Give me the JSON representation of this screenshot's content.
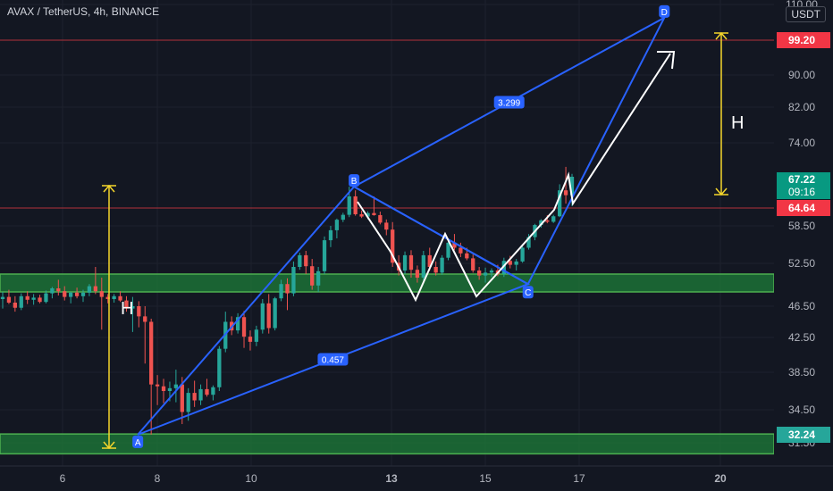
{
  "header": {
    "title": "AVAX / TetherUS, 4h, BINANCE",
    "currency": "USDT"
  },
  "chart_data": {
    "type": "candlestick",
    "y_ticks": [
      "110.00",
      "99.20",
      "90.00",
      "82.00",
      "74.00",
      "67.22",
      "58.50",
      "52.50",
      "46.50",
      "42.50",
      "38.50",
      "34.50",
      "31.50"
    ],
    "x_ticks": [
      "6",
      "8",
      "10",
      "13",
      "15",
      "17",
      "20"
    ],
    "price_labels": [
      {
        "text": "99.20",
        "value": 99.2,
        "color": "#f23645"
      },
      {
        "text": "67.22",
        "sub": "09:16",
        "value": 67.22,
        "color": "#089981"
      },
      {
        "text": "64.64",
        "value": 64.64,
        "color": "#f23645"
      },
      {
        "text": "32.24",
        "value": 32.24,
        "color": "#26a69a"
      }
    ],
    "horizontal_lines": [
      {
        "value": 99.2,
        "color": "#b2323a"
      },
      {
        "value": 64.64,
        "color": "#b2323a"
      }
    ],
    "zones": [
      {
        "from": 48.5,
        "to": 51.0,
        "color": "#1e7d3a"
      },
      {
        "from": 30.5,
        "to": 32.3,
        "color": "#1e7d3a"
      }
    ],
    "pattern_points": [
      {
        "label": "A",
        "x": "7.6",
        "y": 32.24
      },
      {
        "label": "B",
        "x": "12.2",
        "y": 66.4
      },
      {
        "label": "C",
        "x": "15.9",
        "y": 49.6
      },
      {
        "label": "D",
        "x": "18.8",
        "y": 106
      }
    ],
    "ratio_labels": [
      {
        "text": "0.457"
      },
      {
        "text": "3.299"
      }
    ],
    "measure_labels": [
      {
        "text": "H"
      },
      {
        "text": "H"
      }
    ],
    "colors": {
      "up": "#26a69a",
      "down": "#ef5350",
      "pattern": "#2962ff",
      "measure": "#f5d62b",
      "projection": "#ffffff"
    },
    "candles": [
      [
        47.5,
        48.5,
        46.2,
        47.8
      ],
      [
        47.8,
        48.8,
        46.8,
        47.0
      ],
      [
        47.0,
        47.9,
        45.8,
        46.3
      ],
      [
        46.3,
        48.3,
        46.0,
        47.9
      ],
      [
        47.9,
        48.6,
        46.8,
        47.4
      ],
      [
        47.4,
        48.2,
        46.7,
        47.7
      ],
      [
        47.7,
        48.1,
        46.9,
        47.1
      ],
      [
        47.1,
        48.7,
        46.9,
        48.3
      ],
      [
        48.3,
        49.2,
        47.6,
        49.0
      ],
      [
        49.0,
        50.2,
        48.0,
        48.6
      ],
      [
        48.6,
        49.3,
        47.3,
        47.8
      ],
      [
        47.8,
        48.5,
        46.9,
        48.4
      ],
      [
        48.4,
        49.1,
        47.6,
        47.9
      ],
      [
        47.9,
        48.8,
        47.1,
        48.4
      ],
      [
        48.4,
        49.6,
        47.9,
        49.3
      ],
      [
        49.3,
        52.0,
        48.2,
        48.6
      ],
      [
        48.6,
        50.5,
        43.5,
        47.8
      ],
      [
        47.8,
        48.2,
        46.9,
        47.5
      ],
      [
        47.5,
        48.2,
        47.0,
        47.9
      ],
      [
        47.9,
        48.6,
        47.1,
        47.3
      ],
      [
        47.3,
        47.9,
        45.8,
        46.2
      ],
      [
        46.2,
        47.8,
        43.2,
        46.5
      ],
      [
        46.5,
        47.2,
        43.8,
        45.2
      ],
      [
        45.2,
        46.5,
        39.5,
        44.5
      ],
      [
        44.5,
        44.9,
        32.24,
        37.2
      ],
      [
        37.2,
        38.2,
        35.0,
        37.0
      ],
      [
        37.0,
        37.8,
        35.2,
        36.5
      ],
      [
        36.5,
        37.5,
        35.4,
        36.8
      ],
      [
        36.8,
        38.8,
        35.3,
        37.2
      ],
      [
        37.2,
        38.0,
        33.2,
        34.3
      ],
      [
        34.3,
        36.8,
        33.5,
        36.3
      ],
      [
        36.3,
        37.6,
        34.8,
        35.5
      ],
      [
        35.5,
        37.2,
        35.0,
        36.7
      ],
      [
        36.7,
        37.8,
        35.9,
        36.1
      ],
      [
        36.1,
        37.1,
        35.5,
        36.9
      ],
      [
        36.9,
        41.5,
        36.5,
        41.2
      ],
      [
        41.2,
        45.8,
        40.8,
        44.5
      ],
      [
        44.5,
        45.2,
        42.8,
        43.4
      ],
      [
        43.4,
        45.6,
        43.0,
        45.1
      ],
      [
        45.1,
        45.9,
        41.3,
        42.6
      ],
      [
        42.6,
        43.4,
        41.0,
        42.0
      ],
      [
        42.0,
        44.0,
        41.5,
        43.5
      ],
      [
        43.5,
        47.5,
        43.0,
        46.9
      ],
      [
        46.9,
        48.2,
        43.0,
        43.7
      ],
      [
        43.7,
        47.8,
        43.4,
        47.6
      ],
      [
        47.6,
        50.2,
        47.2,
        49.6
      ],
      [
        49.6,
        50.4,
        46.0,
        48.3
      ],
      [
        48.3,
        52.8,
        47.9,
        52.0
      ],
      [
        52.0,
        54.2,
        51.6,
        53.8
      ],
      [
        53.8,
        54.5,
        51.0,
        52.1
      ],
      [
        52.1,
        53.2,
        48.8,
        49.4
      ],
      [
        49.4,
        52.0,
        48.5,
        51.4
      ],
      [
        51.4,
        56.8,
        51.0,
        56.2
      ],
      [
        56.2,
        58.5,
        55.1,
        57.8
      ],
      [
        57.8,
        61.0,
        56.5,
        60.6
      ],
      [
        60.6,
        63.0,
        59.8,
        62.3
      ],
      [
        62.3,
        66.4,
        61.5,
        65.6
      ],
      [
        65.6,
        66.1,
        62.0,
        62.5
      ],
      [
        62.5,
        63.8,
        61.2,
        61.7
      ],
      [
        61.7,
        63.5,
        60.8,
        62.9
      ],
      [
        62.9,
        65.6,
        62.0,
        62.2
      ],
      [
        62.2,
        63.4,
        59.0,
        59.6
      ],
      [
        59.6,
        60.7,
        57.0,
        57.9
      ],
      [
        57.9,
        59.8,
        52.0,
        52.6
      ],
      [
        52.6,
        53.8,
        50.8,
        51.5
      ],
      [
        51.5,
        54.4,
        51.0,
        53.8
      ],
      [
        53.8,
        54.6,
        50.5,
        51.6
      ],
      [
        51.6,
        52.2,
        49.8,
        50.5
      ],
      [
        50.5,
        54.5,
        50.0,
        53.8
      ],
      [
        53.8,
        55.0,
        51.5,
        52.0
      ],
      [
        52.0,
        52.8,
        50.8,
        51.2
      ],
      [
        51.2,
        53.8,
        50.9,
        53.4
      ],
      [
        53.4,
        56.2,
        53.0,
        55.8
      ],
      [
        55.8,
        57.2,
        54.6,
        55.0
      ],
      [
        55.0,
        55.8,
        53.5,
        54.1
      ],
      [
        54.1,
        55.0,
        53.0,
        53.3
      ],
      [
        53.3,
        53.9,
        51.2,
        51.5
      ],
      [
        51.5,
        52.0,
        50.2,
        50.8
      ],
      [
        50.8,
        51.9,
        49.8,
        51.2
      ],
      [
        51.2,
        51.8,
        50.6,
        51.5
      ],
      [
        51.5,
        52.3,
        50.7,
        51.0
      ],
      [
        51.0,
        53.4,
        50.6,
        52.9
      ],
      [
        52.9,
        53.7,
        51.8,
        52.3
      ],
      [
        52.3,
        53.2,
        51.5,
        52.8
      ],
      [
        52.8,
        55.3,
        52.6,
        55.0
      ],
      [
        55.0,
        57.2,
        54.7,
        56.7
      ],
      [
        56.7,
        59.2,
        56.2,
        58.8
      ],
      [
        58.8,
        60.8,
        58.2,
        60.4
      ],
      [
        60.4,
        62.2,
        59.4,
        59.9
      ],
      [
        59.9,
        62.3,
        59.5,
        61.8
      ],
      [
        61.8,
        66.6,
        61.5,
        66.1
      ],
      [
        66.1,
        69.2,
        65.0,
        65.7
      ],
      [
        65.7,
        67.8,
        64.8,
        67.22
      ]
    ]
  }
}
